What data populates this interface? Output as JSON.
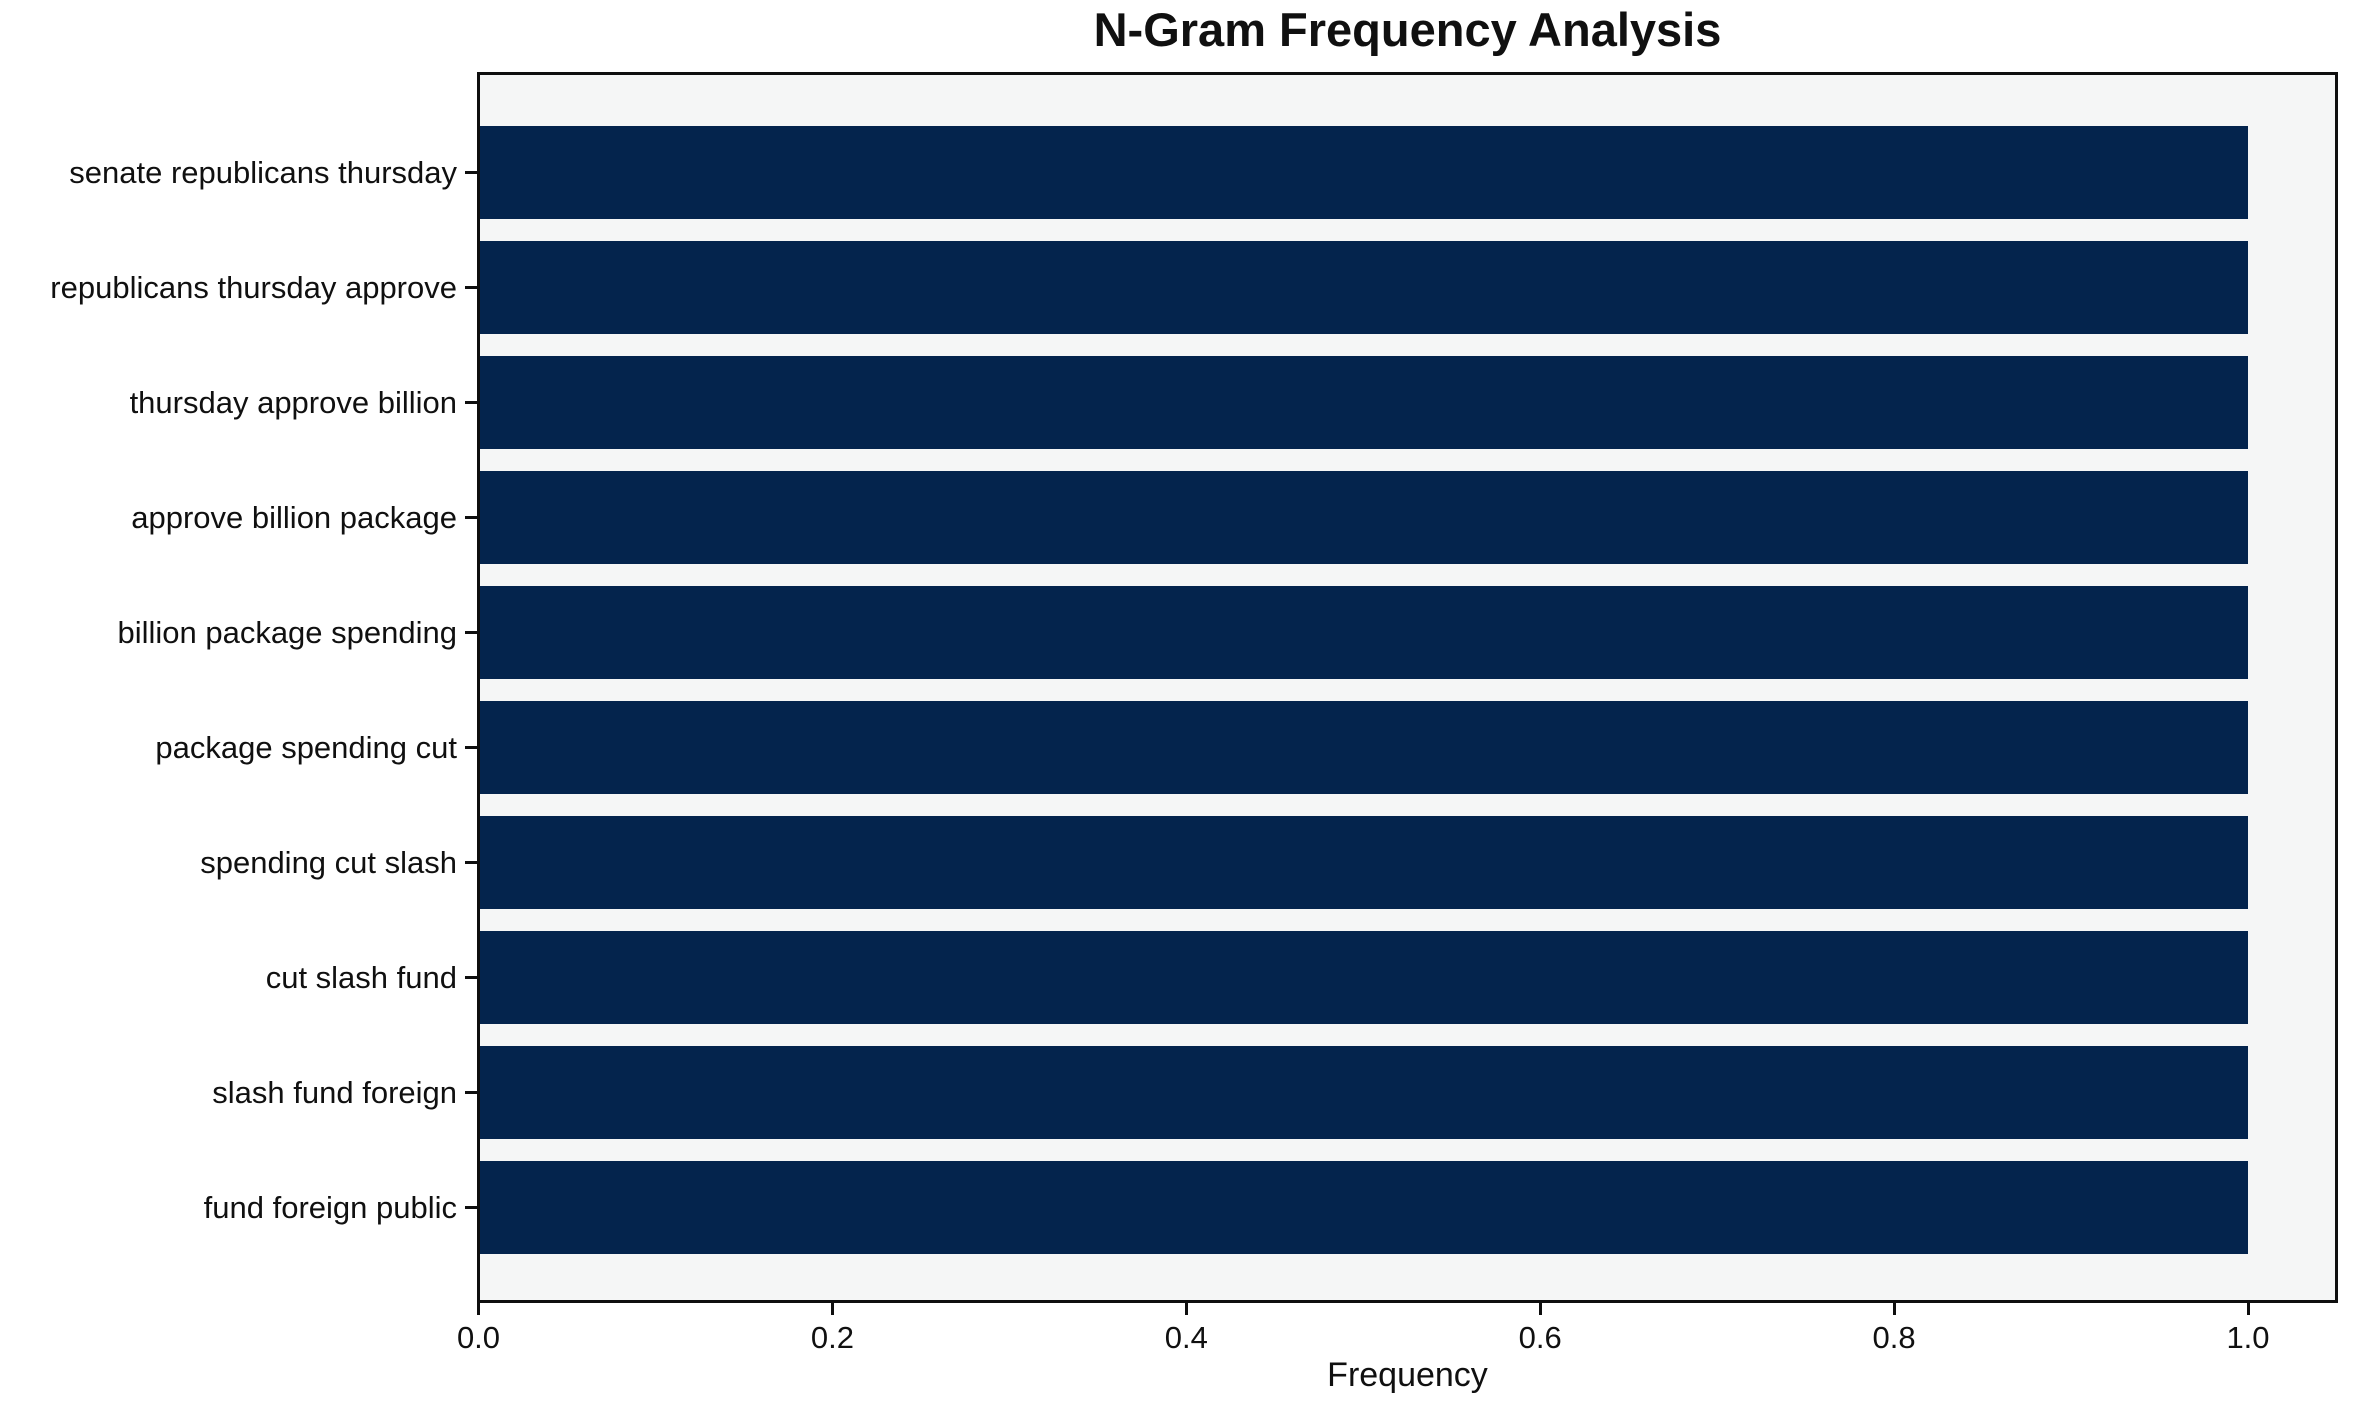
{
  "chart_data": {
    "type": "bar",
    "orientation": "horizontal",
    "title": "N-Gram Frequency Analysis",
    "xlabel": "Frequency",
    "ylabel": "",
    "categories": [
      "senate republicans thursday",
      "republicans thursday approve",
      "thursday approve billion",
      "approve billion package",
      "billion package spending",
      "package spending cut",
      "spending cut slash",
      "cut slash fund",
      "slash fund foreign",
      "fund foreign public"
    ],
    "values": [
      1.0,
      1.0,
      1.0,
      1.0,
      1.0,
      1.0,
      1.0,
      1.0,
      1.0,
      1.0
    ],
    "xticks": [
      0.0,
      0.2,
      0.4,
      0.6,
      0.8,
      1.0
    ],
    "xlim": [
      0,
      1.05
    ],
    "grid": false,
    "legend": "none",
    "colors": {
      "bar": "#04244d",
      "plot_bg": "#f5f6f6",
      "figure_bg": "#ffffff",
      "axis": "#0e0e0e",
      "text": "#101010"
    }
  }
}
